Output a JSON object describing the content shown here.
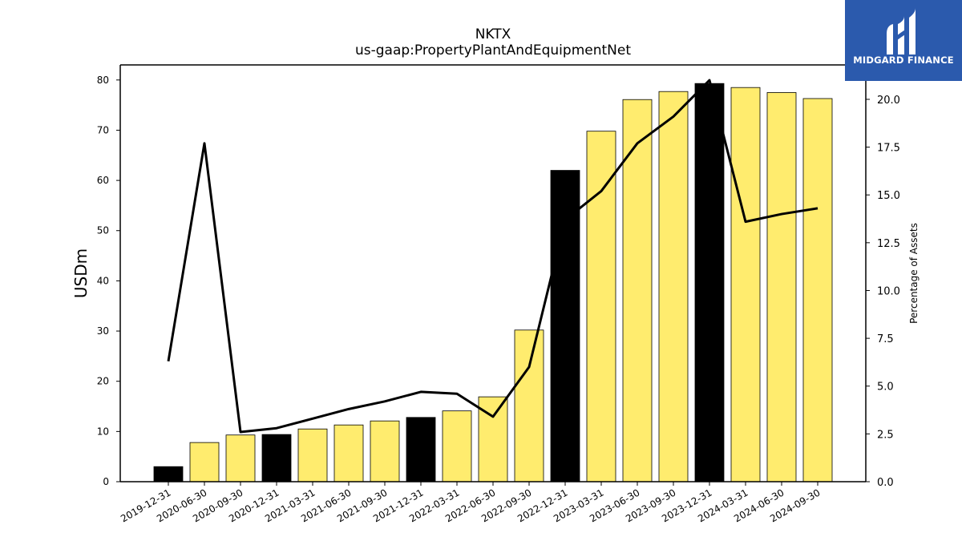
{
  "chart_data": {
    "type": "bar",
    "title": "NKTX",
    "subtitle": "us-gaap:PropertyPlantAndEquipmentNet",
    "ylabel": "USDm",
    "y2label": "Percentage of Assets",
    "categories": [
      "2019-12-31",
      "2020-06-30",
      "2020-09-30",
      "2020-12-31",
      "2021-03-31",
      "2021-06-30",
      "2021-09-30",
      "2021-12-31",
      "2022-03-31",
      "2022-06-30",
      "2022-09-30",
      "2022-12-31",
      "2023-03-31",
      "2023-06-30",
      "2023-09-30",
      "2023-12-31",
      "2024-03-31",
      "2024-06-30",
      "2024-09-30"
    ],
    "ylim": [
      0,
      83
    ],
    "y2lim": [
      0,
      21.8
    ],
    "yticks": [
      0,
      10,
      20,
      30,
      40,
      50,
      60,
      70,
      80
    ],
    "y2ticks": [
      "0.0",
      "2.5",
      "5.0",
      "7.5",
      "10.0",
      "12.5",
      "15.0",
      "17.5",
      "20.0"
    ],
    "series": [
      {
        "type": "bar",
        "values": [
          3.0,
          7.8,
          9.3,
          9.4,
          10.5,
          11.3,
          12.1,
          12.8,
          14.1,
          16.9,
          30.2,
          62.0,
          69.8,
          76.1,
          77.7,
          79.3,
          78.5,
          77.5,
          76.3
        ],
        "highlight": [
          true,
          false,
          false,
          true,
          false,
          false,
          false,
          true,
          false,
          false,
          false,
          true,
          false,
          false,
          false,
          true,
          false,
          false,
          false
        ],
        "colors": {
          "annual": "#000000",
          "quarter": "#ffec6e"
        }
      },
      {
        "type": "line",
        "axis": "right",
        "values": [
          6.3,
          17.7,
          2.6,
          2.8,
          3.3,
          3.8,
          4.2,
          4.7,
          4.6,
          3.4,
          6.0,
          13.7,
          15.2,
          17.7,
          19.1,
          21.0,
          13.6,
          14.0,
          14.3
        ],
        "color": "#000000"
      }
    ]
  },
  "logo": {
    "text": "MIDGARD FINANCE",
    "bg": "#2b5aad"
  }
}
